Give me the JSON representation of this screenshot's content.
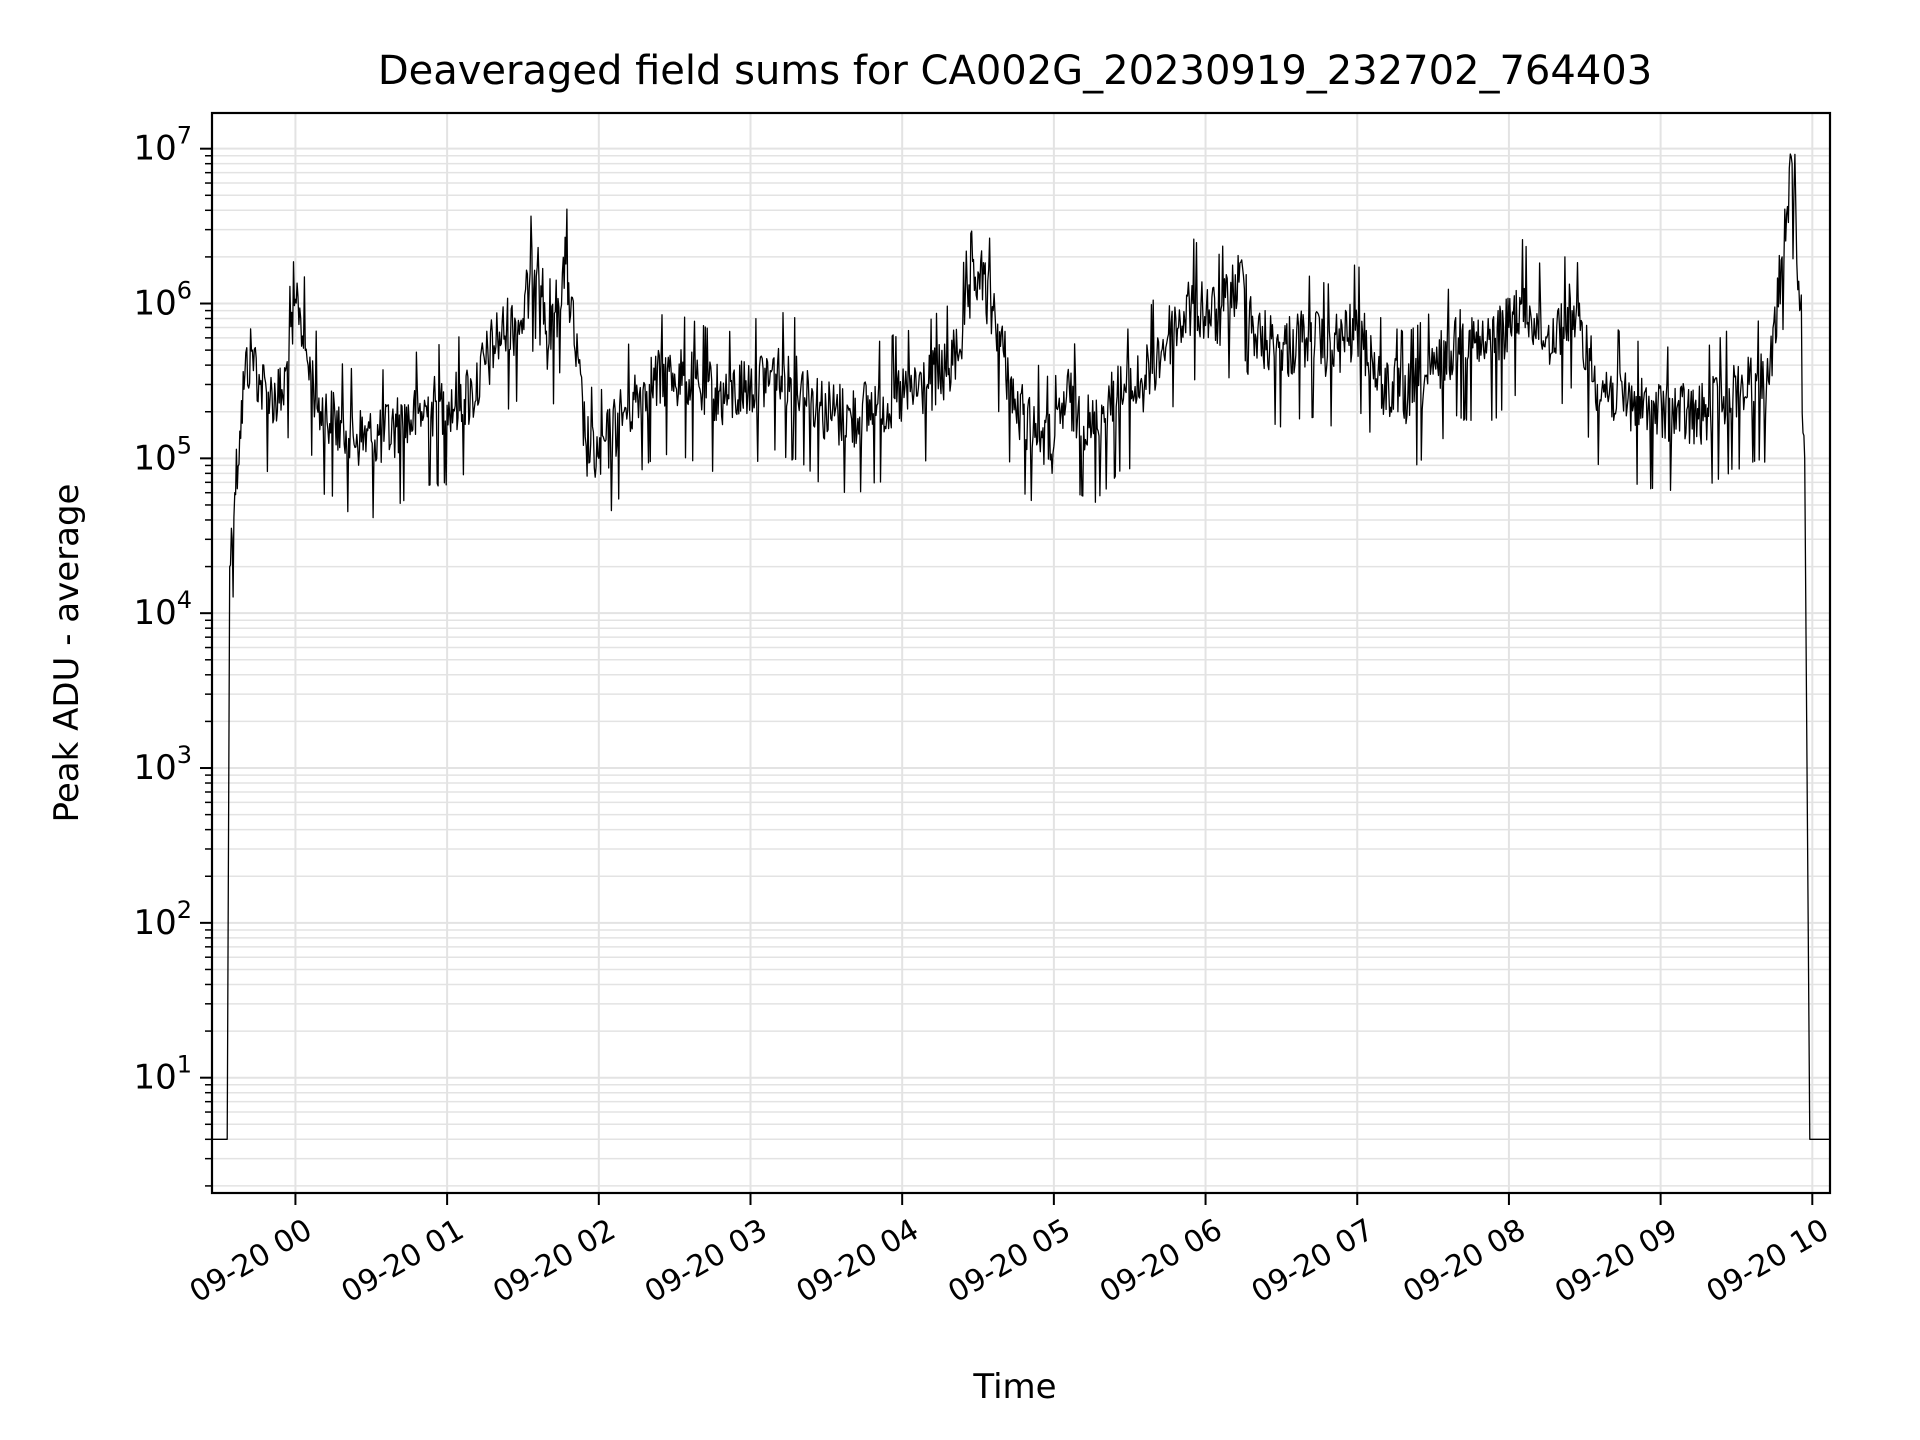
{
  "chart_data": {
    "type": "line",
    "title": "Deaveraged field sums for CA002G_20230919_232702_764403",
    "xlabel": "Time",
    "ylabel": "Peak ADU - average",
    "yscale": "log",
    "ylim": [
      1.8,
      17000000
    ],
    "xlim": [
      "2023-09-19 23:27",
      "2023-09-20 10:07"
    ],
    "grid": true,
    "line_color": "#000000",
    "x_ticks": [
      {
        "t": "2023-09-20 00:00",
        "label": "09-20 00"
      },
      {
        "t": "2023-09-20 01:00",
        "label": "09-20 01"
      },
      {
        "t": "2023-09-20 02:00",
        "label": "09-20 02"
      },
      {
        "t": "2023-09-20 03:00",
        "label": "09-20 03"
      },
      {
        "t": "2023-09-20 04:00",
        "label": "09-20 04"
      },
      {
        "t": "2023-09-20 05:00",
        "label": "09-20 05"
      },
      {
        "t": "2023-09-20 06:00",
        "label": "09-20 06"
      },
      {
        "t": "2023-09-20 07:00",
        "label": "09-20 07"
      },
      {
        "t": "2023-09-20 08:00",
        "label": "09-20 08"
      },
      {
        "t": "2023-09-20 09:00",
        "label": "09-20 09"
      },
      {
        "t": "2023-09-20 10:00",
        "label": "09-20 10"
      }
    ],
    "y_ticks": [
      {
        "value": 10,
        "base": "10",
        "exp": "1"
      },
      {
        "value": 100,
        "base": "10",
        "exp": "2"
      },
      {
        "value": 1000,
        "base": "10",
        "exp": "3"
      },
      {
        "value": 10000,
        "base": "10",
        "exp": "4"
      },
      {
        "value": 100000,
        "base": "10",
        "exp": "5"
      },
      {
        "value": 1000000,
        "base": "10",
        "exp": "6"
      },
      {
        "value": 10000000,
        "base": "10",
        "exp": "7"
      }
    ],
    "series": [
      {
        "points": [
          [
            "2023-09-19 23:27",
            4
          ],
          [
            "2023-09-19 23:33",
            4
          ],
          [
            "2023-09-19 23:34",
            20000
          ],
          [
            "2023-09-19 23:36",
            60000
          ],
          [
            "2023-09-19 23:38",
            150000
          ],
          [
            "2023-09-19 23:40",
            350000
          ],
          [
            "2023-09-19 23:43",
            500000
          ],
          [
            "2023-09-19 23:46",
            300000
          ],
          [
            "2023-09-19 23:50",
            250000
          ],
          [
            "2023-09-19 23:55",
            250000
          ],
          [
            "2023-09-20 00:01",
            1100000
          ],
          [
            "2023-09-20 00:05",
            400000
          ],
          [
            "2023-09-20 00:10",
            200000
          ],
          [
            "2023-09-20 00:20",
            150000
          ],
          [
            "2023-09-20 00:30",
            130000
          ],
          [
            "2023-09-20 00:40",
            160000
          ],
          [
            "2023-09-20 00:50",
            200000
          ],
          [
            "2023-09-20 01:00",
            220000
          ],
          [
            "2023-09-20 01:10",
            260000
          ],
          [
            "2023-09-20 01:20",
            600000
          ],
          [
            "2023-09-20 01:30",
            800000
          ],
          [
            "2023-09-20 01:36",
            2300000
          ],
          [
            "2023-09-20 01:40",
            500000
          ],
          [
            "2023-09-20 01:47",
            1800000
          ],
          [
            "2023-09-20 01:55",
            120000
          ],
          [
            "2023-09-20 02:00",
            100000
          ],
          [
            "2023-09-20 02:10",
            200000
          ],
          [
            "2023-09-20 02:20",
            300000
          ],
          [
            "2023-09-20 02:30",
            350000
          ],
          [
            "2023-09-20 02:40",
            280000
          ],
          [
            "2023-09-20 02:50",
            250000
          ],
          [
            "2023-09-20 03:00",
            300000
          ],
          [
            "2023-09-20 03:10",
            350000
          ],
          [
            "2023-09-20 03:20",
            300000
          ],
          [
            "2023-09-20 03:30",
            200000
          ],
          [
            "2023-09-20 03:40",
            180000
          ],
          [
            "2023-09-20 03:50",
            220000
          ],
          [
            "2023-09-20 04:00",
            250000
          ],
          [
            "2023-09-20 04:10",
            300000
          ],
          [
            "2023-09-20 04:20",
            400000
          ],
          [
            "2023-09-20 04:30",
            1600000
          ],
          [
            "2023-09-20 04:36",
            900000
          ],
          [
            "2023-09-20 04:45",
            200000
          ],
          [
            "2023-09-20 04:55",
            150000
          ],
          [
            "2023-09-20 05:00",
            120000
          ],
          [
            "2023-09-20 05:05",
            250000
          ],
          [
            "2023-09-20 05:15",
            150000
          ],
          [
            "2023-09-20 05:25",
            250000
          ],
          [
            "2023-09-20 05:35",
            300000
          ],
          [
            "2023-09-20 05:45",
            600000
          ],
          [
            "2023-09-20 05:55",
            1000000
          ],
          [
            "2023-09-20 06:05",
            800000
          ],
          [
            "2023-09-20 06:15",
            1500000
          ],
          [
            "2023-09-20 06:20",
            600000
          ],
          [
            "2023-09-20 06:30",
            500000
          ],
          [
            "2023-09-20 06:40",
            600000
          ],
          [
            "2023-09-20 06:50",
            500000
          ],
          [
            "2023-09-20 07:00",
            700000
          ],
          [
            "2023-09-20 07:10",
            300000
          ],
          [
            "2023-09-20 07:20",
            250000
          ],
          [
            "2023-09-20 07:30",
            350000
          ],
          [
            "2023-09-20 07:40",
            600000
          ],
          [
            "2023-09-20 07:50",
            500000
          ],
          [
            "2023-09-20 08:00",
            700000
          ],
          [
            "2023-09-20 08:05",
            1000000
          ],
          [
            "2023-09-20 08:10",
            800000
          ],
          [
            "2023-09-20 08:15",
            600000
          ],
          [
            "2023-09-20 08:20",
            700000
          ],
          [
            "2023-09-20 08:25",
            900000
          ],
          [
            "2023-09-20 08:35",
            300000
          ],
          [
            "2023-09-20 08:45",
            250000
          ],
          [
            "2023-09-20 08:55",
            200000
          ],
          [
            "2023-09-20 09:05",
            200000
          ],
          [
            "2023-09-20 09:15",
            180000
          ],
          [
            "2023-09-20 09:25",
            250000
          ],
          [
            "2023-09-20 09:35",
            300000
          ],
          [
            "2023-09-20 09:43",
            300000
          ],
          [
            "2023-09-20 09:52",
            8000000
          ],
          [
            "2023-09-20 09:55",
            900000
          ],
          [
            "2023-09-20 09:57",
            100000
          ],
          [
            "2023-09-20 09:59",
            4
          ],
          [
            "2023-09-20 10:07",
            4
          ]
        ]
      }
    ]
  }
}
